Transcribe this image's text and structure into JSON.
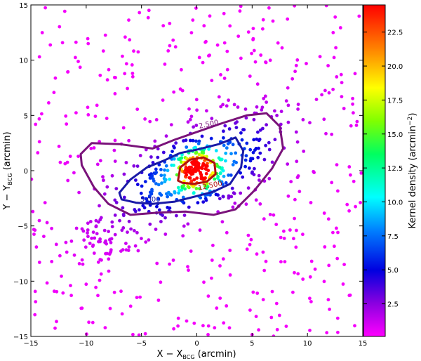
{
  "chart_data": {
    "type": "scatter",
    "title": "",
    "xlabel": "X − X",
    "xlabel_sub": "BCG",
    "xlabel_unit": "(arcmin)",
    "ylabel": "Y − Y",
    "ylabel_sub": "BCG",
    "ylabel_unit": "(arcmin)",
    "xlim": [
      -15,
      15
    ],
    "ylim": [
      -15,
      15
    ],
    "xticks": [
      -15,
      -10,
      -5,
      0,
      5,
      10,
      15
    ],
    "yticks": [
      -15,
      -10,
      -5,
      0,
      5,
      10,
      15
    ],
    "colorbar": {
      "label": "Kernel density (arcmin",
      "label_exp": "−2",
      "label_close": ")",
      "range": [
        0.1,
        24.5
      ],
      "ticks": [
        2.5,
        5.0,
        7.5,
        10.0,
        12.5,
        15.0,
        17.5,
        20.0,
        22.5
      ],
      "tick_labels": [
        "2.5",
        "5.0",
        "7.5",
        "10.0",
        "12.5",
        "15.0",
        "17.5",
        "20.0",
        "22.5"
      ]
    },
    "contour_labels": [
      "2.500",
      "5.000",
      "12.500"
    ],
    "contours": [
      {
        "level": 2.5,
        "color": "#7a137a",
        "points": [
          [
            -10.5,
            1.5
          ],
          [
            -9.5,
            2.5
          ],
          [
            -7,
            2.4
          ],
          [
            -4,
            2.0
          ],
          [
            -2,
            2.8
          ],
          [
            0,
            3.5
          ],
          [
            2,
            4.2
          ],
          [
            4.5,
            5.0
          ],
          [
            6.3,
            5.2
          ],
          [
            7.5,
            4.0
          ],
          [
            7.8,
            2.0
          ],
          [
            6.8,
            0.2
          ],
          [
            5.2,
            -1.8
          ],
          [
            3.5,
            -3.5
          ],
          [
            1.5,
            -4.0
          ],
          [
            -1,
            -3.7
          ],
          [
            -3.5,
            -3.8
          ],
          [
            -6,
            -4.0
          ],
          [
            -8,
            -3.0
          ],
          [
            -9.3,
            -1.5
          ],
          [
            -10.4,
            0.5
          ]
        ]
      },
      {
        "level": 5.0,
        "color": "#1a1aa6",
        "points": [
          [
            -7,
            -2.0
          ],
          [
            -6,
            -0.8
          ],
          [
            -4.5,
            0.3
          ],
          [
            -3,
            0.9
          ],
          [
            -1.5,
            1.6
          ],
          [
            0,
            1.9
          ],
          [
            2,
            2.4
          ],
          [
            3.5,
            3.0
          ],
          [
            4.2,
            1.8
          ],
          [
            4.0,
            0.3
          ],
          [
            3.0,
            -1.2
          ],
          [
            1.5,
            -1.9
          ],
          [
            0,
            -2.3
          ],
          [
            -2,
            -2.8
          ],
          [
            -4,
            -3.0
          ],
          [
            -5.5,
            -2.9
          ],
          [
            -6.8,
            -2.6
          ]
        ]
      },
      {
        "level": 12.5,
        "color": "#b01010",
        "points": [
          [
            -1.7,
            -0.9
          ],
          [
            -1.5,
            0.3
          ],
          [
            -0.6,
            1.0
          ],
          [
            0.6,
            1.2
          ],
          [
            1.6,
            0.7
          ],
          [
            1.7,
            -0.3
          ],
          [
            0.9,
            -1.0
          ],
          [
            -0.3,
            -1.2
          ],
          [
            -1.3,
            -1.1
          ]
        ]
      }
    ]
  }
}
